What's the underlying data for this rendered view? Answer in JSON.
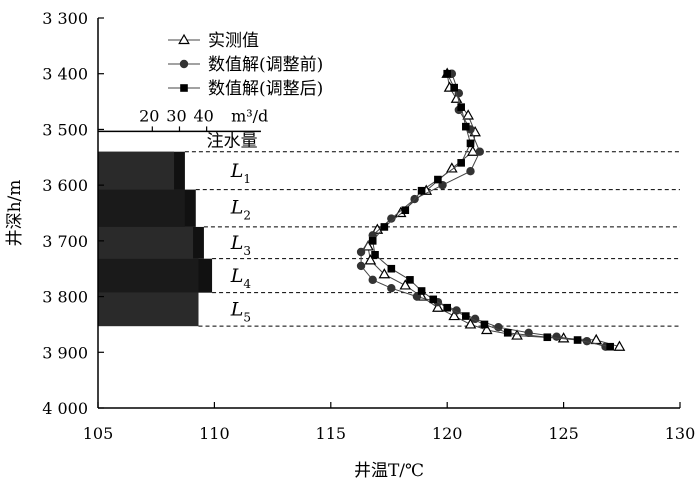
{
  "chart_data": {
    "type": "line",
    "xlabel": "井温T/℃",
    "ylabel": "井深h/m",
    "xlim": [
      105,
      130
    ],
    "ylim": [
      3300,
      4000
    ],
    "y_inverted": true,
    "grid": false,
    "legend_position": "top-center",
    "x_ticks": [
      105,
      110,
      115,
      120,
      125,
      130
    ],
    "x_tick_labels": [
      "105",
      "110",
      "115",
      "120",
      "125",
      "130"
    ],
    "y_ticks": [
      3300,
      3400,
      3500,
      3600,
      3700,
      3800,
      3900,
      4000
    ],
    "y_tick_labels": [
      "3 300",
      "3 400",
      "3 500",
      "3 600",
      "3 700",
      "3 800",
      "3 900",
      "4 000"
    ],
    "series": [
      {
        "name": "实测值",
        "marker": "triangle",
        "points": [
          [
            120.0,
            3400
          ],
          [
            120.1,
            3425
          ],
          [
            120.4,
            3445
          ],
          [
            120.9,
            3475
          ],
          [
            121.2,
            3505
          ],
          [
            121.1,
            3540
          ],
          [
            120.2,
            3570
          ],
          [
            119.1,
            3610
          ],
          [
            118.0,
            3650
          ],
          [
            117.0,
            3680
          ],
          [
            116.6,
            3710
          ],
          [
            116.7,
            3735
          ],
          [
            117.3,
            3760
          ],
          [
            118.2,
            3780
          ],
          [
            118.9,
            3800
          ],
          [
            119.6,
            3820
          ],
          [
            120.3,
            3835
          ],
          [
            121.0,
            3850
          ],
          [
            121.7,
            3860
          ],
          [
            123.0,
            3870
          ],
          [
            125.0,
            3875
          ],
          [
            126.4,
            3878
          ],
          [
            127.4,
            3890
          ]
        ]
      },
      {
        "name": "数值解(调整前)",
        "marker": "circle",
        "points": [
          [
            120.2,
            3400
          ],
          [
            120.5,
            3435
          ],
          [
            120.5,
            3465
          ],
          [
            121.0,
            3500
          ],
          [
            121.4,
            3540
          ],
          [
            121.0,
            3575
          ],
          [
            119.8,
            3600
          ],
          [
            118.6,
            3625
          ],
          [
            117.6,
            3660
          ],
          [
            116.8,
            3690
          ],
          [
            116.3,
            3720
          ],
          [
            116.3,
            3745
          ],
          [
            116.8,
            3770
          ],
          [
            117.6,
            3785
          ],
          [
            118.7,
            3800
          ],
          [
            119.6,
            3810
          ],
          [
            120.4,
            3825
          ],
          [
            121.2,
            3840
          ],
          [
            122.2,
            3855
          ],
          [
            123.5,
            3865
          ],
          [
            124.7,
            3872
          ],
          [
            126.0,
            3880
          ],
          [
            126.8,
            3890
          ]
        ]
      },
      {
        "name": "数值解(调整后)",
        "marker": "square",
        "points": [
          [
            120.0,
            3400
          ],
          [
            120.3,
            3425
          ],
          [
            120.6,
            3460
          ],
          [
            120.8,
            3495
          ],
          [
            121.0,
            3525
          ],
          [
            120.6,
            3560
          ],
          [
            119.6,
            3590
          ],
          [
            118.9,
            3610
          ],
          [
            118.2,
            3645
          ],
          [
            117.3,
            3675
          ],
          [
            116.8,
            3700
          ],
          [
            116.9,
            3725
          ],
          [
            117.6,
            3750
          ],
          [
            118.4,
            3770
          ],
          [
            118.9,
            3790
          ],
          [
            119.4,
            3805
          ],
          [
            120.0,
            3820
          ],
          [
            120.8,
            3835
          ],
          [
            121.6,
            3850
          ],
          [
            122.6,
            3865
          ],
          [
            124.3,
            3873
          ],
          [
            125.6,
            3878
          ],
          [
            127.0,
            3890
          ]
        ]
      }
    ],
    "boundaries": [
      3540,
      3608,
      3675,
      3732,
      3793,
      3853
    ],
    "layer_labels": [
      {
        "main": "L",
        "sub": "1",
        "depth": 3575
      },
      {
        "main": "L",
        "sub": "2",
        "depth": 3640
      },
      {
        "main": "L",
        "sub": "3",
        "depth": 3704
      },
      {
        "main": "L",
        "sub": "4",
        "depth": 3763
      },
      {
        "main": "L",
        "sub": "5",
        "depth": 3823
      }
    ],
    "injection": {
      "title": "注水量",
      "unit": "m³/d",
      "ticks": [
        20,
        30,
        40
      ],
      "tick_labels": [
        "20",
        "30",
        "40"
      ],
      "range": [
        0,
        60
      ],
      "layers": [
        {
          "adjusted": 28,
          "original": 32
        },
        {
          "adjusted": 32,
          "original": 36
        },
        {
          "adjusted": 35,
          "original": 39
        },
        {
          "adjusted": 37,
          "original": 42
        },
        {
          "adjusted": 37,
          "original": 37
        }
      ]
    }
  }
}
